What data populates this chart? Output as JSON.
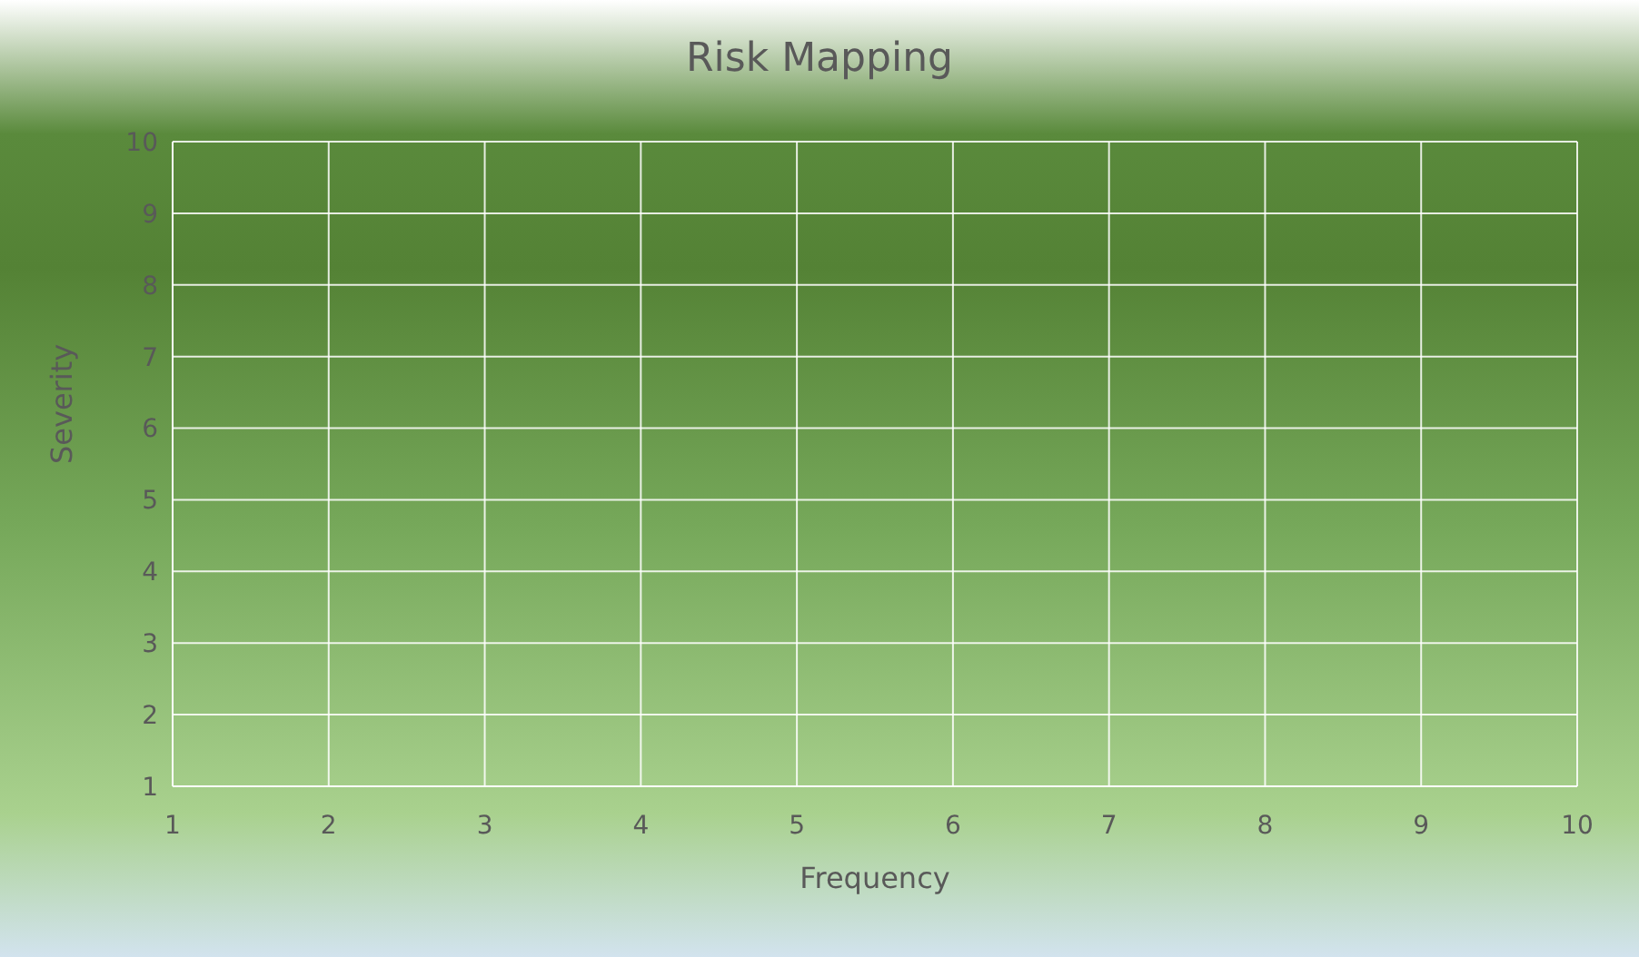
{
  "chart_data": {
    "type": "scatter",
    "title": "Risk Mapping",
    "xlabel": "Frequency",
    "ylabel": "Severity",
    "xlim": [
      1,
      10
    ],
    "ylim": [
      1,
      10
    ],
    "xticks": [
      1,
      2,
      3,
      4,
      5,
      6,
      7,
      8,
      9,
      10
    ],
    "yticks": [
      1,
      2,
      3,
      4,
      5,
      6,
      7,
      8,
      9,
      10
    ],
    "grid": true,
    "legend": false
  }
}
